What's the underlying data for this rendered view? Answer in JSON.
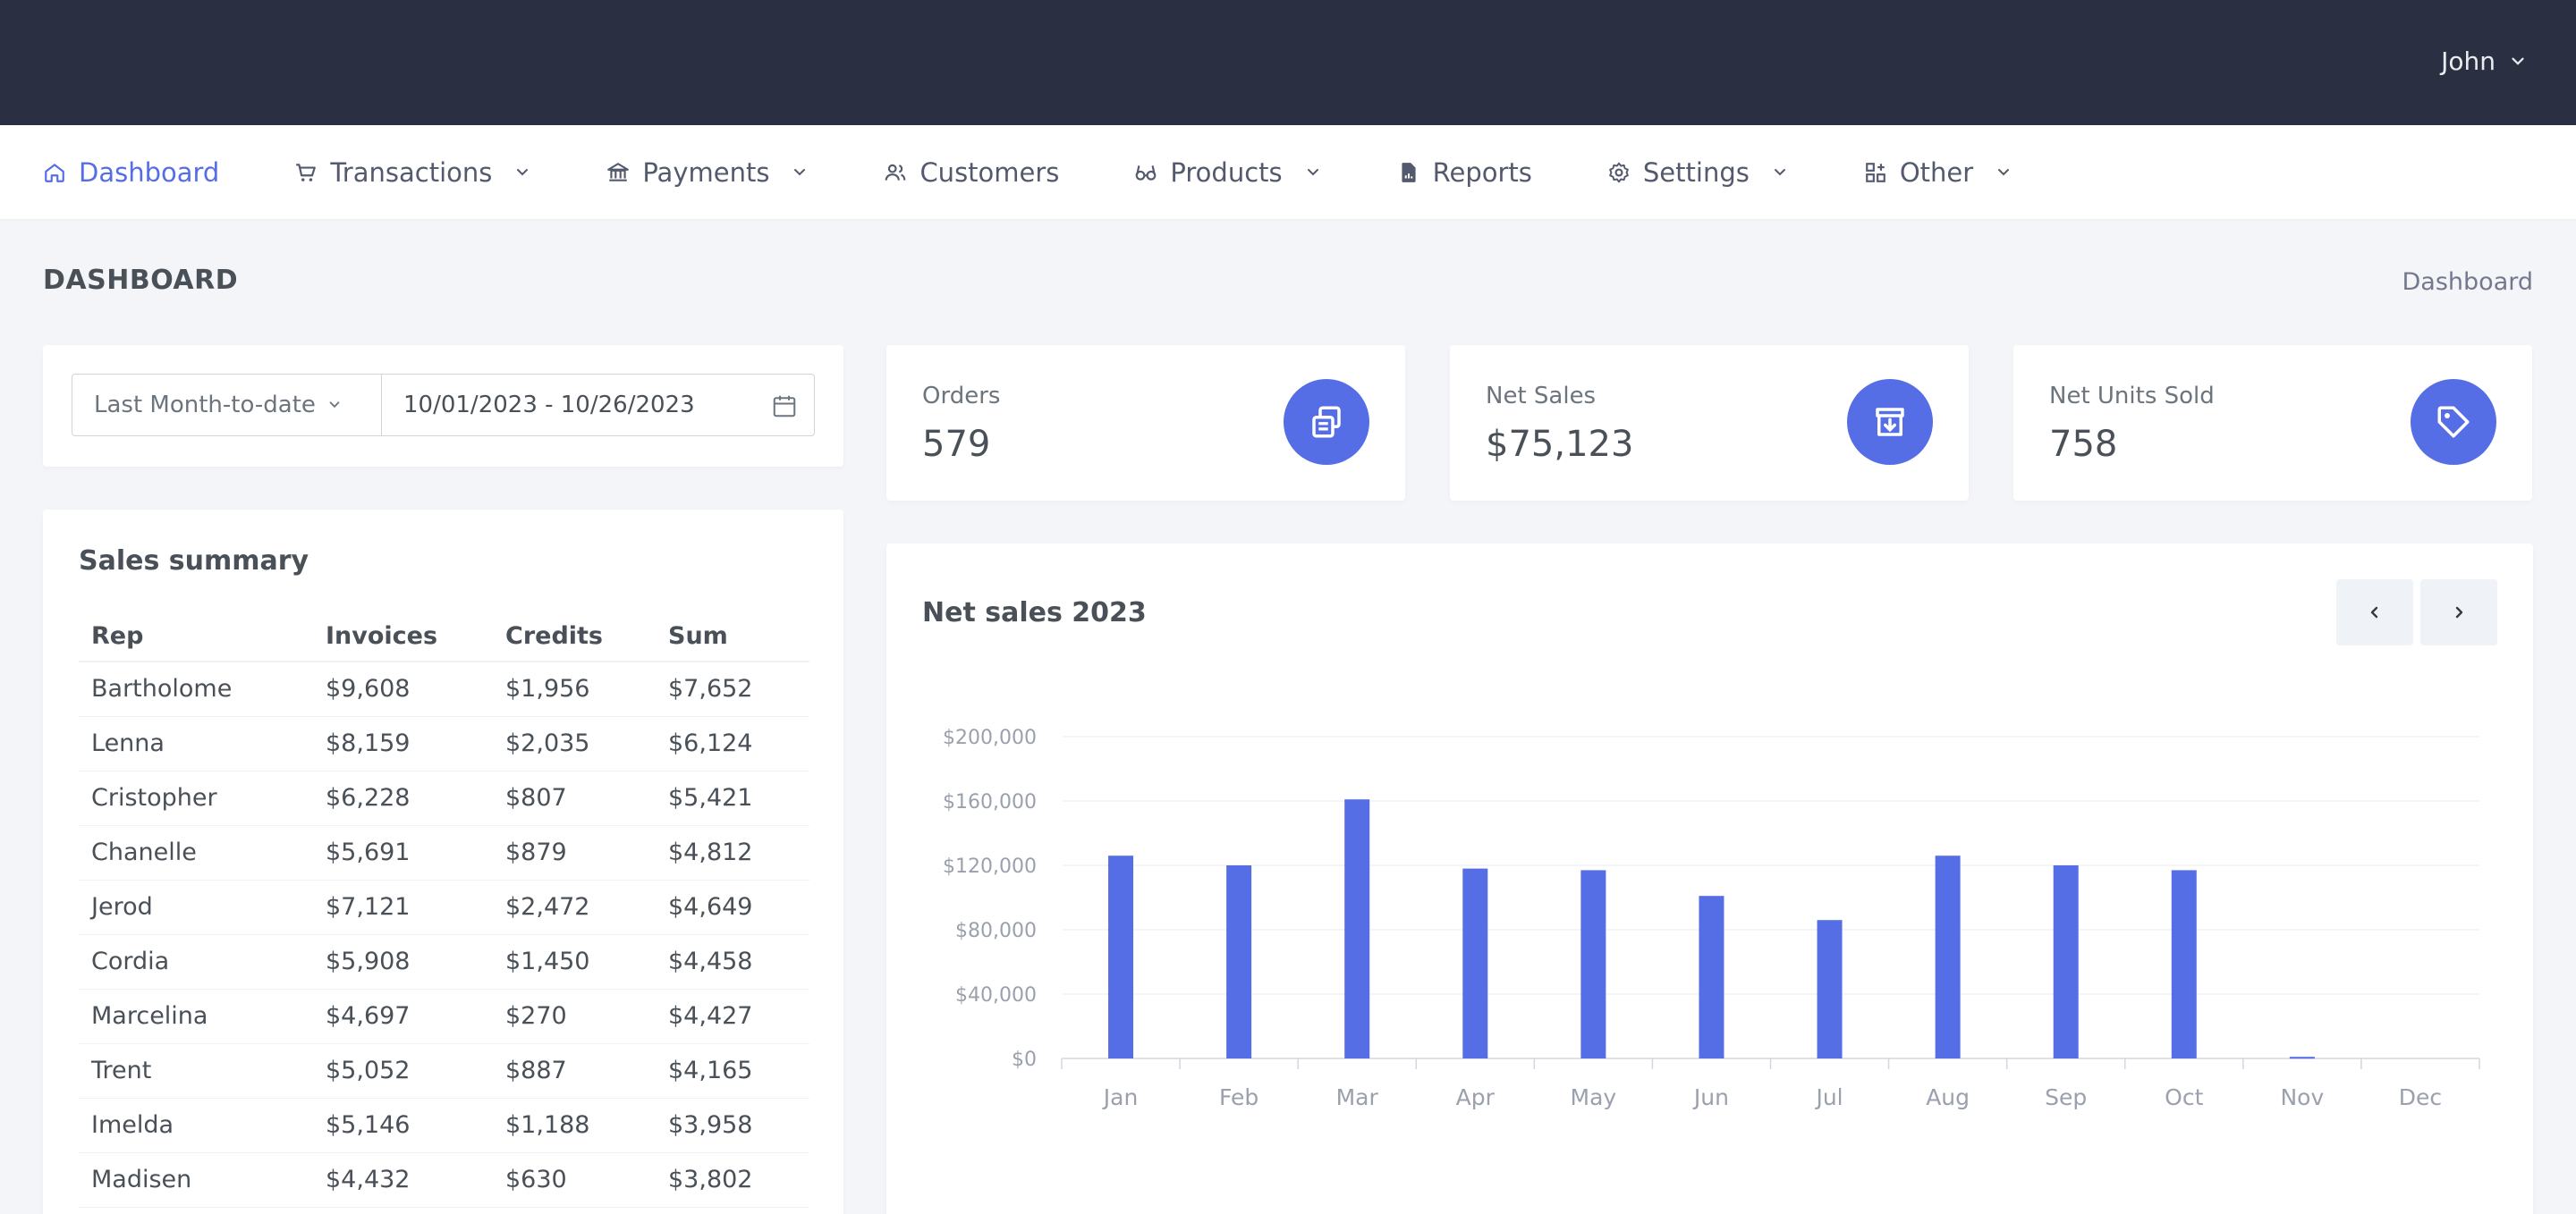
{
  "user": {
    "name": "John"
  },
  "nav": {
    "items": [
      {
        "label": "Dashboard",
        "icon": "home-icon",
        "active": true,
        "dropdown": false
      },
      {
        "label": "Transactions",
        "icon": "cart-icon",
        "active": false,
        "dropdown": true
      },
      {
        "label": "Payments",
        "icon": "bank-icon",
        "active": false,
        "dropdown": true
      },
      {
        "label": "Customers",
        "icon": "users-icon",
        "active": false,
        "dropdown": false
      },
      {
        "label": "Products",
        "icon": "glasses-icon",
        "active": false,
        "dropdown": true
      },
      {
        "label": "Reports",
        "icon": "report-file-icon",
        "active": false,
        "dropdown": false
      },
      {
        "label": "Settings",
        "icon": "gear-icon",
        "active": false,
        "dropdown": true
      },
      {
        "label": "Other",
        "icon": "apps-icon",
        "active": false,
        "dropdown": true
      }
    ]
  },
  "page": {
    "title": "DASHBOARD",
    "breadcrumb": "Dashboard"
  },
  "filter": {
    "range": "Last Month-to-date",
    "dates": "10/01/2023 - 10/26/2023"
  },
  "kpis": [
    {
      "label": "Orders",
      "value": "579",
      "icon": "copy-icon"
    },
    {
      "label": "Net Sales",
      "value": "$75,123",
      "icon": "archive-icon"
    },
    {
      "label": "Net Units Sold",
      "value": "758",
      "icon": "tag-icon"
    }
  ],
  "summary": {
    "title": "Sales summary",
    "columns": [
      "Rep",
      "Invoices",
      "Credits",
      "Sum"
    ],
    "rows": [
      [
        "Bartholome",
        "$9,608",
        "$1,956",
        "$7,652"
      ],
      [
        "Lenna",
        "$8,159",
        "$2,035",
        "$6,124"
      ],
      [
        "Cristopher",
        "$6,228",
        "$807",
        "$5,421"
      ],
      [
        "Chanelle",
        "$5,691",
        "$879",
        "$4,812"
      ],
      [
        "Jerod",
        "$7,121",
        "$2,472",
        "$4,649"
      ],
      [
        "Cordia",
        "$5,908",
        "$1,450",
        "$4,458"
      ],
      [
        "Marcelina",
        "$4,697",
        "$270",
        "$4,427"
      ],
      [
        "Trent",
        "$5,052",
        "$887",
        "$4,165"
      ],
      [
        "Imelda",
        "$5,146",
        "$1,188",
        "$3,958"
      ],
      [
        "Madisen",
        "$4,432",
        "$630",
        "$3,802"
      ]
    ]
  },
  "chart": {
    "title": "Net sales 2023"
  },
  "colors": {
    "accent": "#556ee6",
    "topbar": "#2a3042"
  },
  "chart_data": {
    "type": "bar",
    "title": "Net sales 2023",
    "categories": [
      "Jan",
      "Feb",
      "Mar",
      "Apr",
      "May",
      "Jun",
      "Jul",
      "Aug",
      "Sep",
      "Oct",
      "Nov",
      "Dec"
    ],
    "values": [
      126000,
      120000,
      161000,
      118000,
      117000,
      101000,
      86000,
      126000,
      120000,
      117000,
      1000,
      0
    ],
    "ylim": [
      0,
      200000
    ],
    "yticks": [
      0,
      40000,
      80000,
      120000,
      160000,
      200000
    ],
    "ytick_labels": [
      "$0",
      "$40,000",
      "$80,000",
      "$120,000",
      "$160,000",
      "$200,000"
    ],
    "grid": true,
    "color": "#556ee6"
  }
}
